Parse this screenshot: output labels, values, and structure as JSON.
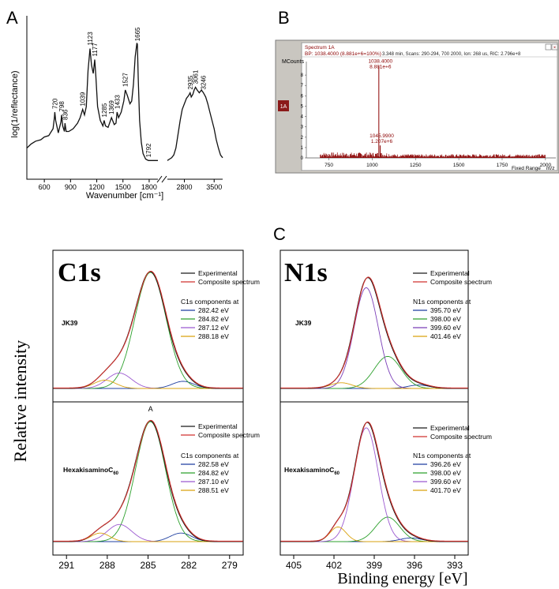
{
  "chart_data": [
    {
      "panel": "A",
      "type": "line",
      "xlabel": "Wavenumber [cm⁻¹]",
      "ylabel": "log(1/reflectance)",
      "xticks": [
        "600",
        "900",
        "1200",
        "1500",
        "1800",
        "2800",
        "3500"
      ],
      "xlim_left": [
        400,
        1900
      ],
      "xlim_right": [
        2400,
        3700
      ],
      "ylim": [
        0,
        100
      ],
      "series": [
        {
          "name": "spectrum-left",
          "x": [
            400,
            450,
            500,
            560,
            600,
            650,
            700,
            715,
            720,
            730,
            760,
            790,
            798,
            810,
            830,
            836,
            850,
            880,
            930,
            980,
            1010,
            1039,
            1060,
            1080,
            1100,
            1123,
            1140,
            1160,
            1177,
            1190,
            1210,
            1240,
            1270,
            1285,
            1300,
            1330,
            1369,
            1400,
            1420,
            1433,
            1450,
            1480,
            1510,
            1527,
            1550,
            1580,
            1600,
            1620,
            1640,
            1660,
            1665,
            1675,
            1690,
            1710,
            1730,
            1760,
            1792,
            1810,
            1830,
            1860,
            1900
          ],
          "y": [
            10,
            13,
            15,
            16,
            18,
            19,
            24,
            32,
            36,
            30,
            21,
            29,
            34,
            26,
            22,
            28,
            22,
            22,
            24,
            28,
            32,
            38,
            34,
            40,
            66,
            82,
            70,
            64,
            74,
            62,
            40,
            30,
            26,
            30,
            26,
            25,
            32,
            27,
            28,
            36,
            32,
            36,
            44,
            52,
            48,
            42,
            44,
            56,
            76,
            86,
            85,
            60,
            30,
            14,
            6,
            2,
            1,
            1,
            1,
            1,
            1
          ]
        },
        {
          "name": "spectrum-right",
          "x": [
            2400,
            2450,
            2500,
            2550,
            2600,
            2650,
            2700,
            2750,
            2800,
            2850,
            2900,
            2935,
            2960,
            3000,
            3030,
            3061,
            3100,
            3150,
            3200,
            3246,
            3300,
            3350,
            3400,
            3450,
            3500,
            3550,
            3600,
            3650,
            3700
          ],
          "y": [
            1,
            2,
            3,
            5,
            10,
            20,
            30,
            38,
            42,
            46,
            48,
            50,
            47,
            49,
            52,
            54,
            52,
            50,
            52,
            50,
            47,
            42,
            36,
            30,
            24,
            16,
            10,
            5,
            3
          ]
        }
      ],
      "annotations": [
        "720",
        "798",
        "836",
        "1039",
        "1123",
        "1177",
        "1285",
        "1369",
        "1433",
        "1527",
        "1665",
        "1792",
        "2935",
        "3061",
        "3246"
      ]
    },
    {
      "panel": "B",
      "type": "bar",
      "header": {
        "left": "Spectrum 1A",
        "left2": "BP: 1038.4000 (8.881e+6=100%)",
        "right": "3.348 min, Scans: 290-294, 700 2000, Ion: 268 us, RIC: 2.796e+8"
      },
      "ylabel": "MCounts",
      "xlabel": "m/z",
      "range_label": "Fixed Range",
      "side_tag": "1A",
      "xticks": [
        "750",
        "1000",
        "1250",
        "1500",
        "1750",
        "2000"
      ],
      "yticks": [
        "0",
        "1",
        "2",
        "3",
        "4",
        "5",
        "6",
        "7",
        "8"
      ],
      "xlim": [
        620,
        2060
      ],
      "ylim": [
        0,
        9
      ],
      "peaks": [
        {
          "mz": 1038.4,
          "intensity": 8.881,
          "label1": "1038.4000",
          "label2": "8.881e+6"
        },
        {
          "mz": 1045.99,
          "intensity": 1.207,
          "label1": "1045.9900",
          "label2": "1.207e+6"
        }
      ]
    },
    {
      "panel": "C1s",
      "type": "line",
      "title": "C1s",
      "xticks": [
        "291",
        "288",
        "285",
        "282",
        "279"
      ],
      "xlim": [
        292,
        278
      ],
      "ylabel": "Relative intensity",
      "legend": [
        "Experimental",
        "Composite spectrum"
      ],
      "subplots": [
        {
          "sample": "JK39",
          "components_title": "C1s components at",
          "components": [
            "282.42 eV",
            "284.82 eV",
            "287.12 eV",
            "288.18 eV"
          ],
          "peaks": [
            {
              "center": 282.42,
              "height": 0.06,
              "width": 0.8,
              "color": "#1f3fa0"
            },
            {
              "center": 284.82,
              "height": 0.98,
              "width": 1.15,
              "color": "#2ca02c"
            },
            {
              "center": 287.12,
              "height": 0.13,
              "width": 0.9,
              "color": "#9b59d0"
            },
            {
              "center": 288.18,
              "height": 0.07,
              "width": 0.8,
              "color": "#d9a20d"
            }
          ]
        },
        {
          "sample": "HexakisaminoC",
          "sample_sub": "60",
          "marker": "A",
          "components_title": "C1s components at",
          "components": [
            "282.58 eV",
            "284.82 eV",
            "287.10 eV",
            "288.51 eV"
          ],
          "peaks": [
            {
              "center": 282.58,
              "height": 0.07,
              "width": 0.8,
              "color": "#1f3fa0"
            },
            {
              "center": 284.82,
              "height": 0.98,
              "width": 1.1,
              "color": "#2ca02c"
            },
            {
              "center": 287.1,
              "height": 0.14,
              "width": 0.9,
              "color": "#9b59d0"
            },
            {
              "center": 288.51,
              "height": 0.07,
              "width": 0.7,
              "color": "#d9a20d"
            }
          ]
        }
      ]
    },
    {
      "panel": "N1s",
      "type": "line",
      "title": "N1s",
      "xticks": [
        "405",
        "402",
        "399",
        "396",
        "393"
      ],
      "xlim": [
        406,
        392
      ],
      "xlabel": "Binding energy [eV]",
      "legend": [
        "Experimental",
        "Composite spectrum"
      ],
      "subplots": [
        {
          "sample": "JK39",
          "components_title": "N1s components at",
          "components": [
            "395.70 eV",
            "398.00 eV",
            "399.60 eV",
            "401.46 eV"
          ],
          "peaks": [
            {
              "center": 395.7,
              "height": 0.03,
              "width": 0.8,
              "color": "#1f3fa0"
            },
            {
              "center": 398.0,
              "height": 0.28,
              "width": 1.0,
              "color": "#2ca02c"
            },
            {
              "center": 399.6,
              "height": 0.88,
              "width": 0.9,
              "color": "#7b3fb8"
            },
            {
              "center": 401.46,
              "height": 0.05,
              "width": 0.8,
              "color": "#d9a20d"
            }
          ]
        },
        {
          "sample": "HexakisaminoC",
          "sample_sub": "60",
          "components_title": "N1s components at",
          "components": [
            "396.26 eV",
            "398.00 eV",
            "399.60 eV",
            "401.70 eV"
          ],
          "peaks": [
            {
              "center": 396.26,
              "height": 0.03,
              "width": 0.8,
              "color": "#1f3fa0"
            },
            {
              "center": 398.0,
              "height": 0.2,
              "width": 0.9,
              "color": "#2ca02c"
            },
            {
              "center": 399.6,
              "height": 0.93,
              "width": 0.9,
              "color": "#9b59d0"
            },
            {
              "center": 401.7,
              "height": 0.12,
              "width": 0.6,
              "color": "#d9a20d"
            }
          ]
        }
      ]
    }
  ],
  "panel_labels": [
    "A",
    "B",
    "C"
  ],
  "colors": {
    "experimental": "#1a1a1a",
    "composite": "#d0312d",
    "ms_red": "#8b0000"
  }
}
